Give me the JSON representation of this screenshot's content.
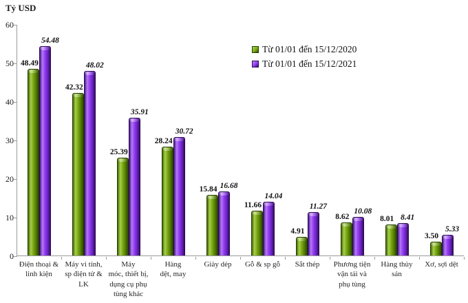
{
  "chart_data": {
    "type": "bar",
    "title": "Tỷ USD",
    "value_format": "0.00",
    "grid": false,
    "legend_position": "inside-top-right",
    "ylim": [
      0,
      60
    ],
    "yticks": [
      0,
      10,
      20,
      30,
      40,
      50,
      60
    ],
    "categories": [
      "Điện thoại &\nlinh kiện",
      "Máy vi tính,\nsp điện tử &\nLK",
      "Máy\nmóc, thiết bị,\ndụng cụ phụ\ntùng khác",
      "Hàng\ndệt, may",
      "Giày dép",
      "Gỗ & sp gỗ",
      "Sắt thép",
      "Phương tiện\nvận tải và\nphụ tùng",
      "Hàng thủy\nsản",
      "Xơ, sợi dệt"
    ],
    "series": [
      {
        "name": "Từ 01/01 đến 15/12/2020",
        "color": "#7AA812",
        "color_light": "#A6CF4A",
        "color_dark": "#2C4A00",
        "values": [
          48.49,
          42.32,
          25.39,
          28.24,
          15.84,
          11.66,
          4.91,
          8.62,
          8.01,
          3.5
        ]
      },
      {
        "name": "Từ 01/01 đến 15/12/2021",
        "color": "#8F3CF0",
        "color_light": "#B678F8",
        "color_dark": "#35105F",
        "values": [
          54.48,
          48.02,
          35.91,
          30.72,
          16.68,
          14.04,
          11.27,
          10.08,
          8.41,
          5.33
        ]
      }
    ],
    "axis_color": "#9A9A9A"
  }
}
